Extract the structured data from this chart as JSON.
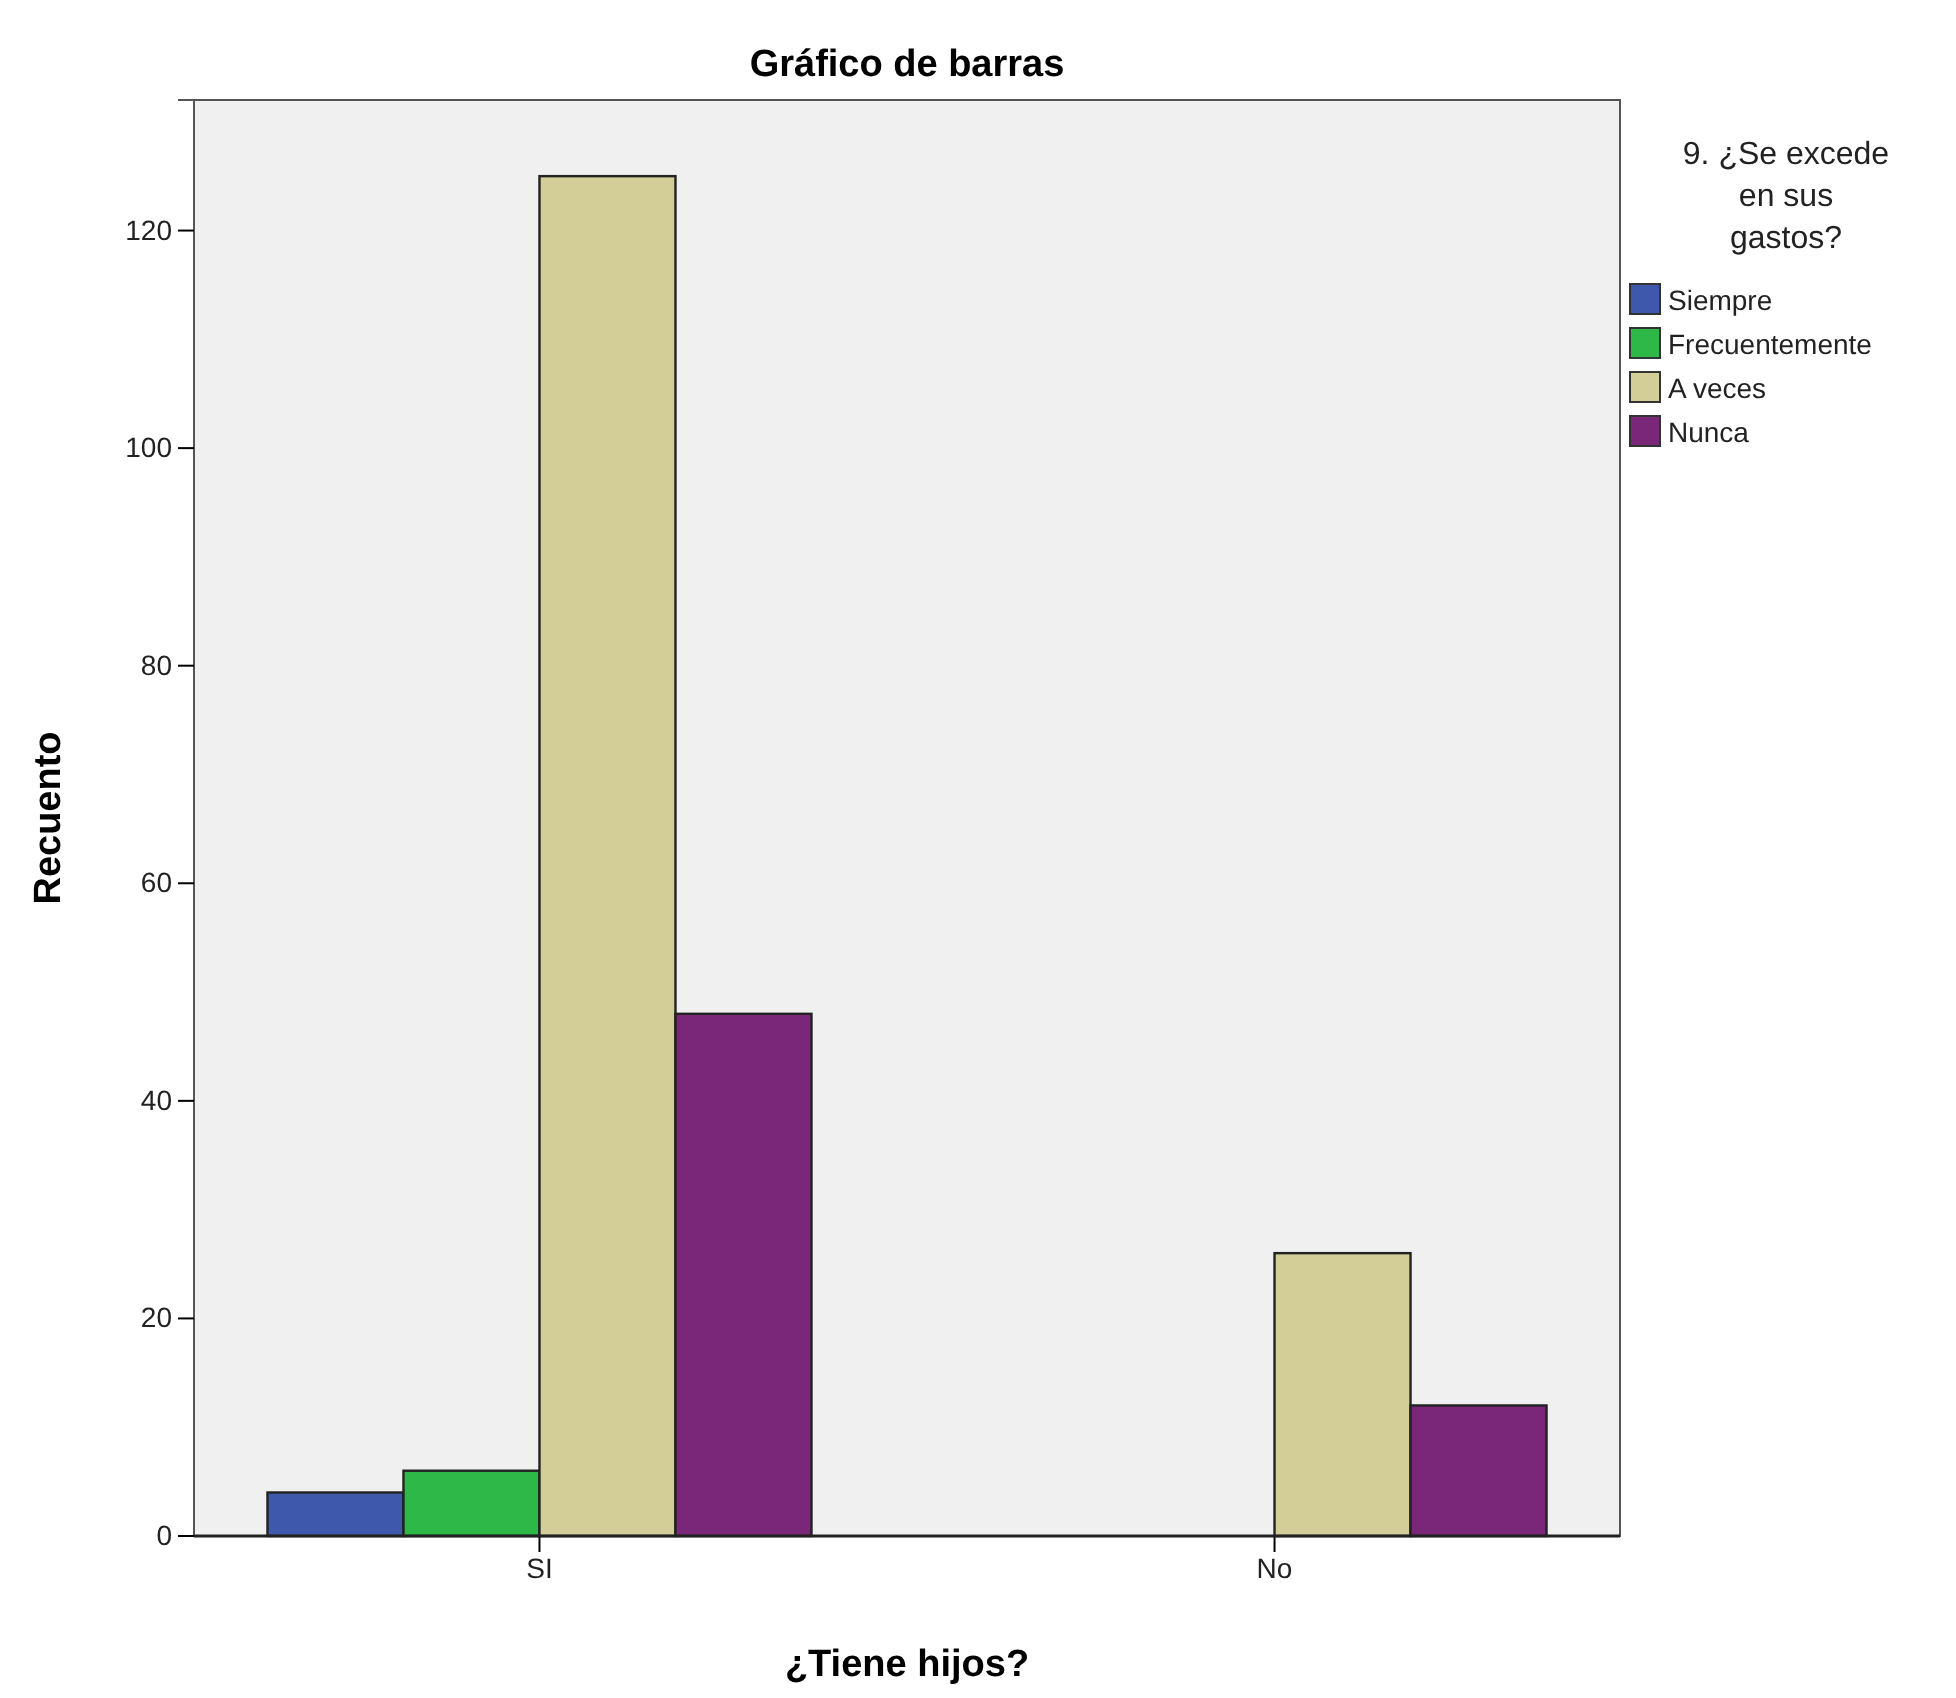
{
  "chart_data": {
    "type": "bar",
    "title": "Gráfico de barras",
    "xlabel": "¿Tiene hijos?",
    "ylabel": "Recuento",
    "legend_title": "9. ¿Se excede en sus gastos?",
    "categories": [
      "SI",
      "No"
    ],
    "series": [
      {
        "name": "Siempre",
        "color": "#3e58ac",
        "values": [
          4,
          null
        ]
      },
      {
        "name": "Frecuentemente",
        "color": "#2eb848",
        "values": [
          6,
          null
        ]
      },
      {
        "name": "A veces",
        "color": "#d3ce97",
        "values": [
          125,
          26
        ]
      },
      {
        "name": "Nunca",
        "color": "#7a2779",
        "values": [
          48,
          12
        ]
      }
    ],
    "ylim": [
      0,
      132
    ],
    "yticks": [
      0,
      20,
      40,
      60,
      80,
      100,
      120
    ],
    "grid": false,
    "legend": "top right"
  }
}
